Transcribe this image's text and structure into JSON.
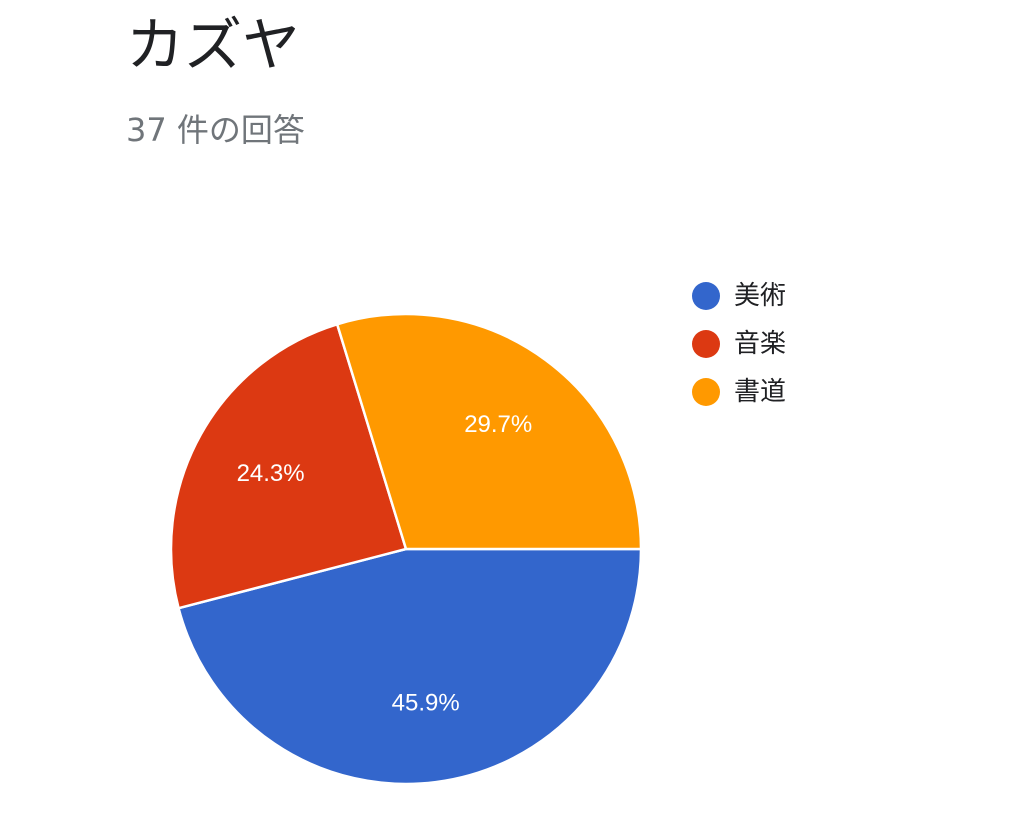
{
  "header": {
    "title": "カズヤ",
    "subtitle": "37 件の回答"
  },
  "chart_data": {
    "type": "pie",
    "title": "カズヤ",
    "subtitle": "37 件の回答",
    "legend_placement": "right",
    "start_angle_deg": 90,
    "direction": "clockwise",
    "slices": [
      {
        "label": "美術",
        "value": 45.9,
        "display": "45.9%",
        "color": "#3366cc"
      },
      {
        "label": "音楽",
        "value": 24.3,
        "display": "24.3%",
        "color": "#dc3912"
      },
      {
        "label": "書道",
        "value": 29.7,
        "display": "29.7%",
        "color": "#ff9900"
      }
    ]
  }
}
